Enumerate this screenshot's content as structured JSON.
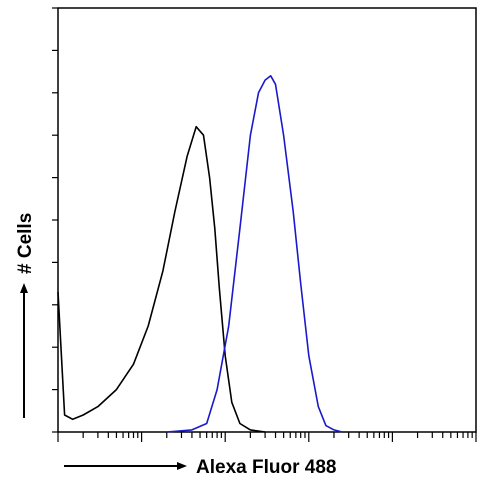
{
  "chart_data": {
    "type": "line",
    "title": "",
    "xlabel": "Alexa Fluor 488",
    "ylabel": "# Cells",
    "x_scale": "log",
    "xlim": [
      1,
      100000
    ],
    "ylim": [
      0,
      100
    ],
    "grid": false,
    "legend": "none",
    "series": [
      {
        "color": "#000000",
        "x": [
          1,
          1.2,
          1.5,
          2,
          3,
          5,
          8,
          12,
          18,
          25,
          35,
          45,
          55,
          65,
          75,
          85,
          100,
          120,
          150,
          200,
          300
        ],
        "y": [
          33,
          4,
          3,
          4,
          6,
          10,
          16,
          25,
          38,
          52,
          65,
          72,
          70,
          60,
          48,
          34,
          18,
          7,
          2,
          0.5,
          0
        ]
      },
      {
        "color": "#1a1acc",
        "x": [
          20,
          40,
          60,
          80,
          110,
          150,
          200,
          250,
          300,
          350,
          400,
          500,
          650,
          800,
          1000,
          1300,
          1600,
          2000,
          2500
        ],
        "y": [
          0,
          0.5,
          2,
          10,
          25,
          48,
          70,
          80,
          83,
          84,
          82,
          70,
          52,
          35,
          18,
          6,
          1.5,
          0.5,
          0
        ]
      }
    ]
  }
}
